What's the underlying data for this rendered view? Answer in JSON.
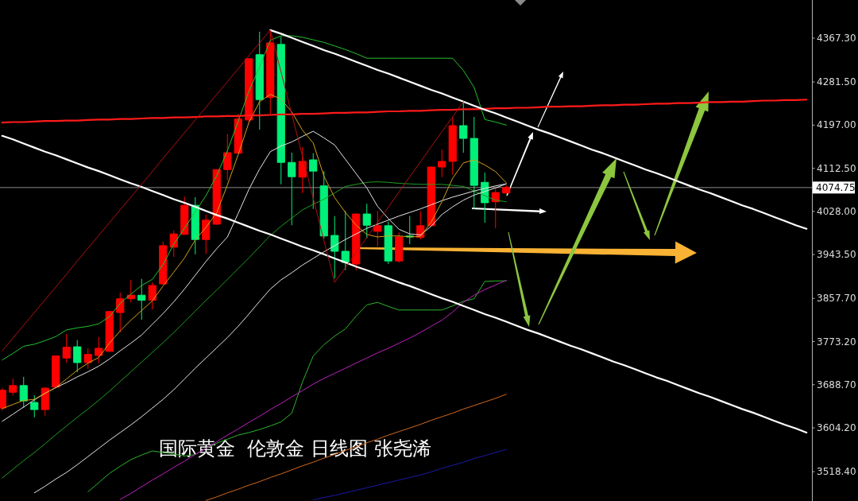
{
  "chart_data": {
    "type": "candlestick",
    "title": "国际黄金  伦敦金 日线图 张尧浠",
    "categories": [
      null,
      null,
      null,
      null,
      null,
      null,
      null,
      null,
      null,
      null,
      null,
      null,
      null,
      null,
      null,
      null,
      null,
      null,
      null,
      null,
      null,
      null,
      null,
      null,
      null,
      null,
      null,
      null,
      null,
      null,
      null,
      null,
      null,
      null,
      null,
      null,
      null,
      null,
      null,
      null,
      null,
      null,
      null,
      null,
      null,
      null,
      null,
      null,
      null,
      null,
      null,
      null,
      null,
      null,
      null,
      null,
      null,
      null,
      null,
      null,
      null,
      null,
      null,
      null,
      null,
      null,
      null,
      null,
      null,
      null,
      null,
      null,
      null,
      null,
      null,
      null
    ],
    "ohlc": [
      [
        3643,
        3682,
        3638,
        3678
      ],
      [
        3674,
        3701,
        3668,
        3687
      ],
      [
        3687,
        3704,
        3643,
        3657
      ],
      [
        3654,
        3668,
        3625,
        3640
      ],
      [
        3640,
        3684,
        3628,
        3682
      ],
      [
        3684,
        3746,
        3683,
        3745
      ],
      [
        3741,
        3788,
        3732,
        3762
      ],
      [
        3763,
        3776,
        3713,
        3732
      ],
      [
        3732,
        3760,
        3720,
        3748
      ],
      [
        3746,
        3782,
        3731,
        3760
      ],
      [
        3754,
        3833,
        3753,
        3832
      ],
      [
        3830,
        3869,
        3791,
        3857
      ],
      [
        3857,
        3894,
        3850,
        3864
      ],
      [
        3864,
        3896,
        3816,
        3854
      ],
      [
        3854,
        3889,
        3836,
        3883
      ],
      [
        3886,
        3969,
        3885,
        3961
      ],
      [
        3958,
        3991,
        3939,
        3984
      ],
      [
        3983,
        4057,
        3982,
        4040
      ],
      [
        4040,
        4056,
        3944,
        3973
      ],
      [
        3973,
        4022,
        3945,
        4011
      ],
      [
        4003,
        4111,
        4002,
        4110
      ],
      [
        4110,
        4180,
        4089,
        4143
      ],
      [
        4142,
        4219,
        4141,
        4209
      ],
      [
        4207,
        4328,
        4201,
        4327
      ],
      [
        4335,
        4380,
        4188,
        4247
      ],
      [
        4251,
        4383,
        4219,
        4358
      ],
      [
        4355,
        4370,
        4081,
        4124
      ],
      [
        4124,
        4143,
        4001,
        4096
      ],
      [
        4095,
        4154,
        4064,
        4126
      ],
      [
        4129,
        4142,
        4033,
        4107
      ],
      [
        4078,
        4107,
        3975,
        3980
      ],
      [
        3981,
        4019,
        3897,
        3950
      ],
      [
        3950,
        4029,
        3913,
        3928
      ],
      [
        3925,
        4024,
        3913,
        4023
      ],
      [
        4023,
        4043,
        3975,
        4001
      ],
      [
        3989,
        4029,
        3959,
        4000
      ],
      [
        4000,
        4008,
        3925,
        3931
      ],
      [
        3931,
        3987,
        3928,
        3978
      ],
      [
        3980,
        4019,
        3964,
        3978
      ],
      [
        3977,
        4029,
        3973,
        4000
      ],
      [
        4000,
        4116,
        3999,
        4115
      ],
      [
        4115,
        4149,
        4095,
        4126
      ],
      [
        4126,
        4212,
        4100,
        4196
      ],
      [
        4196,
        4243,
        4143,
        4171
      ],
      [
        4171,
        4213,
        4033,
        4079
      ],
      [
        4085,
        4104,
        4006,
        4045
      ],
      [
        4047,
        4073,
        3995,
        4065
      ],
      [
        4064,
        4079,
        4063,
        4075
      ],
      null,
      null,
      null,
      null,
      null,
      null,
      null,
      null,
      null,
      null,
      null,
      null,
      null,
      null,
      null,
      null,
      null,
      null,
      null,
      null,
      null,
      null,
      null,
      null,
      null,
      null,
      null,
      null
    ],
    "colors": [
      "#ff0000",
      "#ff0000",
      "#00f07a",
      "#00f07a",
      "#ff0000",
      "#ff0000",
      "#ff0000",
      "#00f07a",
      "#ff0000",
      "#ff0000",
      "#ff0000",
      "#ff0000",
      "#ff0000",
      "#00f07a",
      "#ff0000",
      "#ff0000",
      "#ff0000",
      "#ff0000",
      "#00f07a",
      "#ff0000",
      "#ff0000",
      "#ff0000",
      "#ff0000",
      "#ff0000",
      "#00f07a",
      "#ff0000",
      "#00f07a",
      "#00f07a",
      "#ff0000",
      "#00f07a",
      "#00f07a",
      "#00f07a",
      "#00f07a",
      "#ff0000",
      "#00f07a",
      "#ff0000",
      "#00f07a",
      "#ff0000",
      "#00f07a",
      "#ff0000",
      "#ff0000",
      "#ff0000",
      "#ff0000",
      "#00f07a",
      "#00f07a",
      "#00f07a",
      "#ff0000",
      "#ff0000",
      null,
      null,
      null,
      null,
      null,
      null,
      null,
      null,
      null,
      null,
      null,
      null,
      null,
      null,
      null,
      null,
      null,
      null,
      null,
      null,
      null,
      null,
      null,
      null,
      null,
      null,
      null,
      null
    ],
    "ylim": [
      3461,
      4442
    ],
    "yticks": [
      {
        "value": 4367.3,
        "label": "4367.30"
      },
      {
        "value": 4281.5,
        "label": "4281.50"
      },
      {
        "value": 4197,
        "label": "4197.00"
      },
      {
        "value": 4112.5,
        "label": "4112.50"
      },
      {
        "value": 4028,
        "label": "4028.00"
      },
      {
        "value": 3943.5,
        "label": "3943.50"
      },
      {
        "value": 3857.7,
        "label": "3857.70"
      },
      {
        "value": 3773.2,
        "label": "3773.20"
      },
      {
        "value": 3688.7,
        "label": "3688.70"
      },
      {
        "value": 3604.2,
        "label": "3604.20"
      },
      {
        "value": 3518.4,
        "label": "3518.40"
      }
    ],
    "tick_labels": "y",
    "ref_lines": [
      {
        "axis": "y",
        "value": 4074.75,
        "label": "4074.75",
        "color": "#8c8c8c"
      }
    ],
    "series": [
      {
        "type": "line",
        "color": "#22c32e",
        "values": [
          3737,
          3750,
          3764,
          3768,
          3775,
          3783,
          3796,
          3800,
          3803,
          3808,
          3822,
          3848,
          3866,
          3883,
          3895,
          3924,
          3964,
          3995,
          4027,
          4059,
          4098,
          4147,
          4204,
          4263,
          4311,
          4363,
          4372,
          4372,
          4369,
          4364,
          4359,
          4352,
          4345,
          4337,
          4328,
          4328,
          4328,
          4328,
          4328,
          4328,
          4328,
          4328,
          4328,
          4304,
          4271,
          4208,
          4203,
          4197,
          null,
          null,
          null,
          null,
          null,
          null,
          null,
          null,
          null,
          null,
          null,
          null,
          null,
          null,
          null,
          null,
          null,
          null,
          null,
          null,
          null,
          null,
          null,
          null,
          null,
          null,
          null,
          null
        ]
      },
      {
        "type": "line",
        "color": "#1e9e1e",
        "values": [
          3506,
          3523,
          3540,
          3556,
          3573,
          3591,
          3608,
          3625,
          3641,
          3658,
          3676,
          3695,
          3714,
          3733,
          3752,
          3771,
          3791,
          3812,
          3833,
          3854,
          3874,
          3895,
          3916,
          3937,
          3959,
          3981,
          3999,
          4015,
          4031,
          4042,
          4052,
          4064,
          4077,
          4081,
          4085,
          4086,
          4085,
          4083,
          4082,
          4081,
          4081,
          4081,
          4079,
          4077,
          4068,
          4059,
          4050,
          4047,
          null,
          null,
          null,
          null,
          null,
          null,
          null,
          null,
          null,
          null,
          null,
          null,
          null,
          null,
          null,
          null,
          null,
          null,
          null,
          null,
          null,
          null,
          null,
          null,
          null,
          null,
          null,
          null
        ]
      },
      {
        "type": "line",
        "color": "#2db52d",
        "values": [
          null,
          null,
          null,
          null,
          null,
          null,
          null,
          null,
          3479,
          3497,
          3515,
          3529,
          3542,
          3551,
          3559,
          3556,
          3553,
          3549,
          3552,
          3564,
          3574,
          3582,
          3590,
          3595,
          3601,
          3608,
          3616,
          3633,
          3694,
          3745,
          3767,
          3784,
          3798,
          3823,
          3845,
          3850,
          3842,
          3835,
          3835,
          3835,
          3835,
          3835,
          3843,
          3852,
          3857,
          3891,
          3892,
          3892,
          null,
          null,
          null,
          null,
          null,
          null,
          null,
          null,
          null,
          null,
          null,
          null,
          null,
          null,
          null,
          null,
          null,
          null,
          null,
          null,
          null,
          null,
          null,
          null,
          null,
          null,
          null,
          null
        ]
      },
      {
        "type": "line",
        "color": "#e6e6e6",
        "values": [
          3617,
          3631,
          3645,
          3659,
          3672,
          3683,
          3693,
          3704,
          3714,
          3725,
          3739,
          3755,
          3770,
          3786,
          3807,
          3828,
          3851,
          3876,
          3903,
          3930,
          3955,
          3978,
          4024,
          4071,
          4111,
          4145,
          4156,
          4164,
          4175,
          4185,
          4172,
          4158,
          4130,
          4102,
          4074,
          4038,
          4014,
          3993,
          3984,
          3982,
          3999,
          4022,
          4037,
          4050,
          4060,
          4067,
          4074,
          4082,
          null,
          null,
          null,
          null,
          null,
          null,
          null,
          null,
          null,
          null,
          null,
          null,
          null,
          null,
          null,
          null,
          null,
          null,
          null,
          null,
          null,
          null,
          null,
          null,
          null,
          null,
          null,
          null
        ]
      },
      {
        "type": "line",
        "color": "#e6e6e6",
        "values": [
          null,
          null,
          null,
          3477,
          3490,
          3504,
          3517,
          3532,
          3548,
          3564,
          3580,
          3595,
          3610,
          3626,
          3643,
          3660,
          3679,
          3700,
          3721,
          3741,
          3761,
          3781,
          3803,
          3827,
          3852,
          3876,
          3894,
          3908,
          3923,
          3936,
          3949,
          3961,
          3973,
          3984,
          3995,
          4003,
          4011,
          4019,
          4026,
          4033,
          4041,
          4049,
          4056,
          4062,
          4068,
          4073,
          4078,
          4082,
          null,
          null,
          null,
          null,
          null,
          null,
          null,
          null,
          null,
          null,
          null,
          null,
          null,
          null,
          null,
          null,
          null,
          null,
          null,
          null,
          null,
          null,
          null,
          null,
          null,
          null,
          null,
          null
        ]
      },
      {
        "type": "line",
        "color": "#d4a017",
        "values": [
          3642,
          3650,
          3658,
          3660,
          3672,
          3683,
          3700,
          3717,
          3731,
          3742,
          3770,
          3794,
          3815,
          3834,
          3853,
          3882,
          3909,
          3937,
          3972,
          3997,
          4025,
          4080,
          4139,
          4202,
          4243,
          4257,
          4248,
          4223,
          4187,
          4162,
          4097,
          4055,
          4026,
          4001,
          3983,
          3978,
          3980,
          3980,
          3978,
          3979,
          4007,
          4047,
          4093,
          4123,
          4129,
          4119,
          4106,
          4084,
          null,
          null,
          null,
          null,
          null,
          null,
          null,
          null,
          null,
          null,
          null,
          null,
          null,
          null,
          null,
          null,
          null,
          null,
          null,
          null,
          null,
          null,
          null,
          null,
          null,
          null,
          null,
          null
        ]
      },
      {
        "type": "line",
        "color": "#c020c0",
        "values": [
          null,
          null,
          null,
          null,
          null,
          null,
          null,
          null,
          null,
          null,
          null,
          3464,
          3476,
          3489,
          3502,
          3514,
          3527,
          3539,
          3552,
          3564,
          3577,
          3590,
          3602,
          3615,
          3627,
          3640,
          3652,
          3665,
          3677,
          3690,
          3701,
          3711,
          3721,
          3731,
          3741,
          3751,
          3760,
          3770,
          3780,
          3791,
          3803,
          3815,
          3831,
          3850,
          3864,
          3875,
          3884,
          3893,
          null,
          null,
          null,
          null,
          null,
          null,
          null,
          null,
          null,
          null,
          null,
          null,
          null,
          null,
          null,
          null,
          null,
          null,
          null,
          null,
          null,
          null,
          null,
          null,
          null,
          null,
          null,
          null
        ]
      },
      {
        "type": "line",
        "color": "#d2691e",
        "values": [
          null,
          null,
          null,
          null,
          null,
          null,
          null,
          null,
          null,
          null,
          null,
          null,
          null,
          null,
          null,
          null,
          null,
          null,
          null,
          3462,
          3469,
          3477,
          3484,
          3492,
          3499,
          3507,
          3514,
          3522,
          3530,
          3537,
          3545,
          3552,
          3560,
          3567,
          3575,
          3582,
          3590,
          3597,
          3604,
          3611,
          3619,
          3626,
          3633,
          3641,
          3648,
          3655,
          3662,
          3670,
          null,
          null,
          null,
          null,
          null,
          null,
          null,
          null,
          null,
          null,
          null,
          null,
          null,
          null,
          null,
          null,
          null,
          null,
          null,
          null,
          null,
          null,
          null,
          null,
          null,
          null,
          null,
          null
        ]
      },
      {
        "type": "line",
        "color": "#1a1aa8",
        "values": [
          null,
          null,
          null,
          null,
          null,
          null,
          null,
          null,
          null,
          null,
          null,
          null,
          null,
          null,
          null,
          null,
          null,
          null,
          null,
          null,
          null,
          null,
          null,
          null,
          null,
          null,
          null,
          null,
          null,
          3463,
          3468,
          3472,
          3477,
          3482,
          3487,
          3492,
          3497,
          3502,
          3507,
          3512,
          3518,
          3525,
          3531,
          3537,
          3544,
          3550,
          3556,
          3562,
          null,
          null,
          null,
          null,
          null,
          null,
          null,
          null,
          null,
          null,
          null,
          null,
          null,
          null,
          null,
          null,
          null,
          null,
          null,
          null,
          null,
          null,
          null,
          null,
          null,
          null,
          null,
          null
        ]
      },
      {
        "type": "line",
        "color": "#ff1a1a",
        "values": [
          4202,
          4203,
          4203,
          4204,
          4205,
          4205,
          4206,
          4206,
          4207,
          4208,
          4208,
          4209,
          4209,
          4210,
          4211,
          4211,
          4212,
          4212,
          4213,
          4214,
          4214,
          4215,
          4215,
          4216,
          4216,
          4217,
          4218,
          4218,
          4219,
          4219,
          4220,
          4221,
          4221,
          4222,
          4222,
          4223,
          4224,
          4224,
          4225,
          4225,
          4226,
          4227,
          4227,
          4228,
          4228,
          4229,
          4230,
          4230,
          4231,
          4231,
          4232,
          4233,
          4233,
          4234,
          4234,
          4235,
          4236,
          4236,
          4237,
          4237,
          4238,
          4239,
          4239,
          4240,
          4240,
          4241,
          4242,
          4242,
          4243,
          4243,
          4244,
          4245,
          4245,
          4246,
          4246,
          4247
        ]
      },
      {
        "type": "line",
        "color": "#ffffff",
        "values": [
          null,
          null,
          null,
          null,
          null,
          null,
          null,
          null,
          null,
          null,
          null,
          null,
          null,
          null,
          null,
          null,
          null,
          null,
          null,
          null,
          null,
          null,
          null,
          null,
          null,
          4383,
          4376,
          4368,
          4360,
          4352,
          4344,
          4337,
          4329,
          4321,
          4313,
          4305,
          4298,
          4290,
          4282,
          4274,
          4266,
          4259,
          4251,
          4243,
          4235,
          4227,
          4220,
          4212,
          4204,
          4196,
          4188,
          4181,
          4173,
          4165,
          4157,
          4149,
          4142,
          4134,
          4126,
          4118,
          4110,
          4103,
          4095,
          4087,
          4079,
          4071,
          4064,
          4056,
          4048,
          4040,
          4033,
          4025,
          4017,
          4009,
          4001,
          3994
        ]
      },
      {
        "type": "line",
        "color": "#ffffff",
        "values": [
          4176,
          4169,
          4161,
          4153,
          4145,
          4138,
          4130,
          4122,
          4114,
          4107,
          4099,
          4091,
          4083,
          4076,
          4068,
          4060,
          4052,
          4045,
          4037,
          4029,
          4021,
          4014,
          4006,
          3998,
          3990,
          3983,
          3975,
          3967,
          3959,
          3952,
          3944,
          3936,
          3928,
          3920,
          3913,
          3905,
          3897,
          3889,
          3882,
          3874,
          3866,
          3858,
          3851,
          3843,
          3835,
          3827,
          3820,
          3812,
          3804,
          3796,
          3789,
          3781,
          3773,
          3765,
          3758,
          3750,
          3742,
          3734,
          3727,
          3719,
          3711,
          3703,
          3696,
          3688,
          3680,
          3672,
          3665,
          3657,
          3649,
          3641,
          3634,
          3626,
          3618,
          3610,
          3603,
          3595
        ]
      },
      {
        "type": "line",
        "color": "#b01010",
        "values": [
          3755,
          3780,
          3805,
          3830,
          3855,
          3880,
          3905,
          3931,
          3956,
          3981,
          4006,
          4031,
          4056,
          4081,
          4106,
          4132,
          4157,
          4182,
          4207,
          4232,
          4257,
          4282,
          4307,
          4333,
          4358,
          4383,
          4301,
          4218,
          4136,
          4054,
          3971,
          3889,
          3918,
          3948,
          3977,
          4007,
          4036,
          4066,
          4096,
          4125,
          4155,
          4184,
          4213,
          4243,
          null,
          null,
          null,
          null,
          null,
          null,
          null,
          null,
          null,
          null,
          null,
          null,
          null,
          null,
          null,
          null,
          null,
          null,
          null,
          null,
          null,
          null,
          null,
          null,
          null,
          null,
          null,
          null,
          null,
          null,
          null,
          null
        ]
      }
    ]
  }
}
